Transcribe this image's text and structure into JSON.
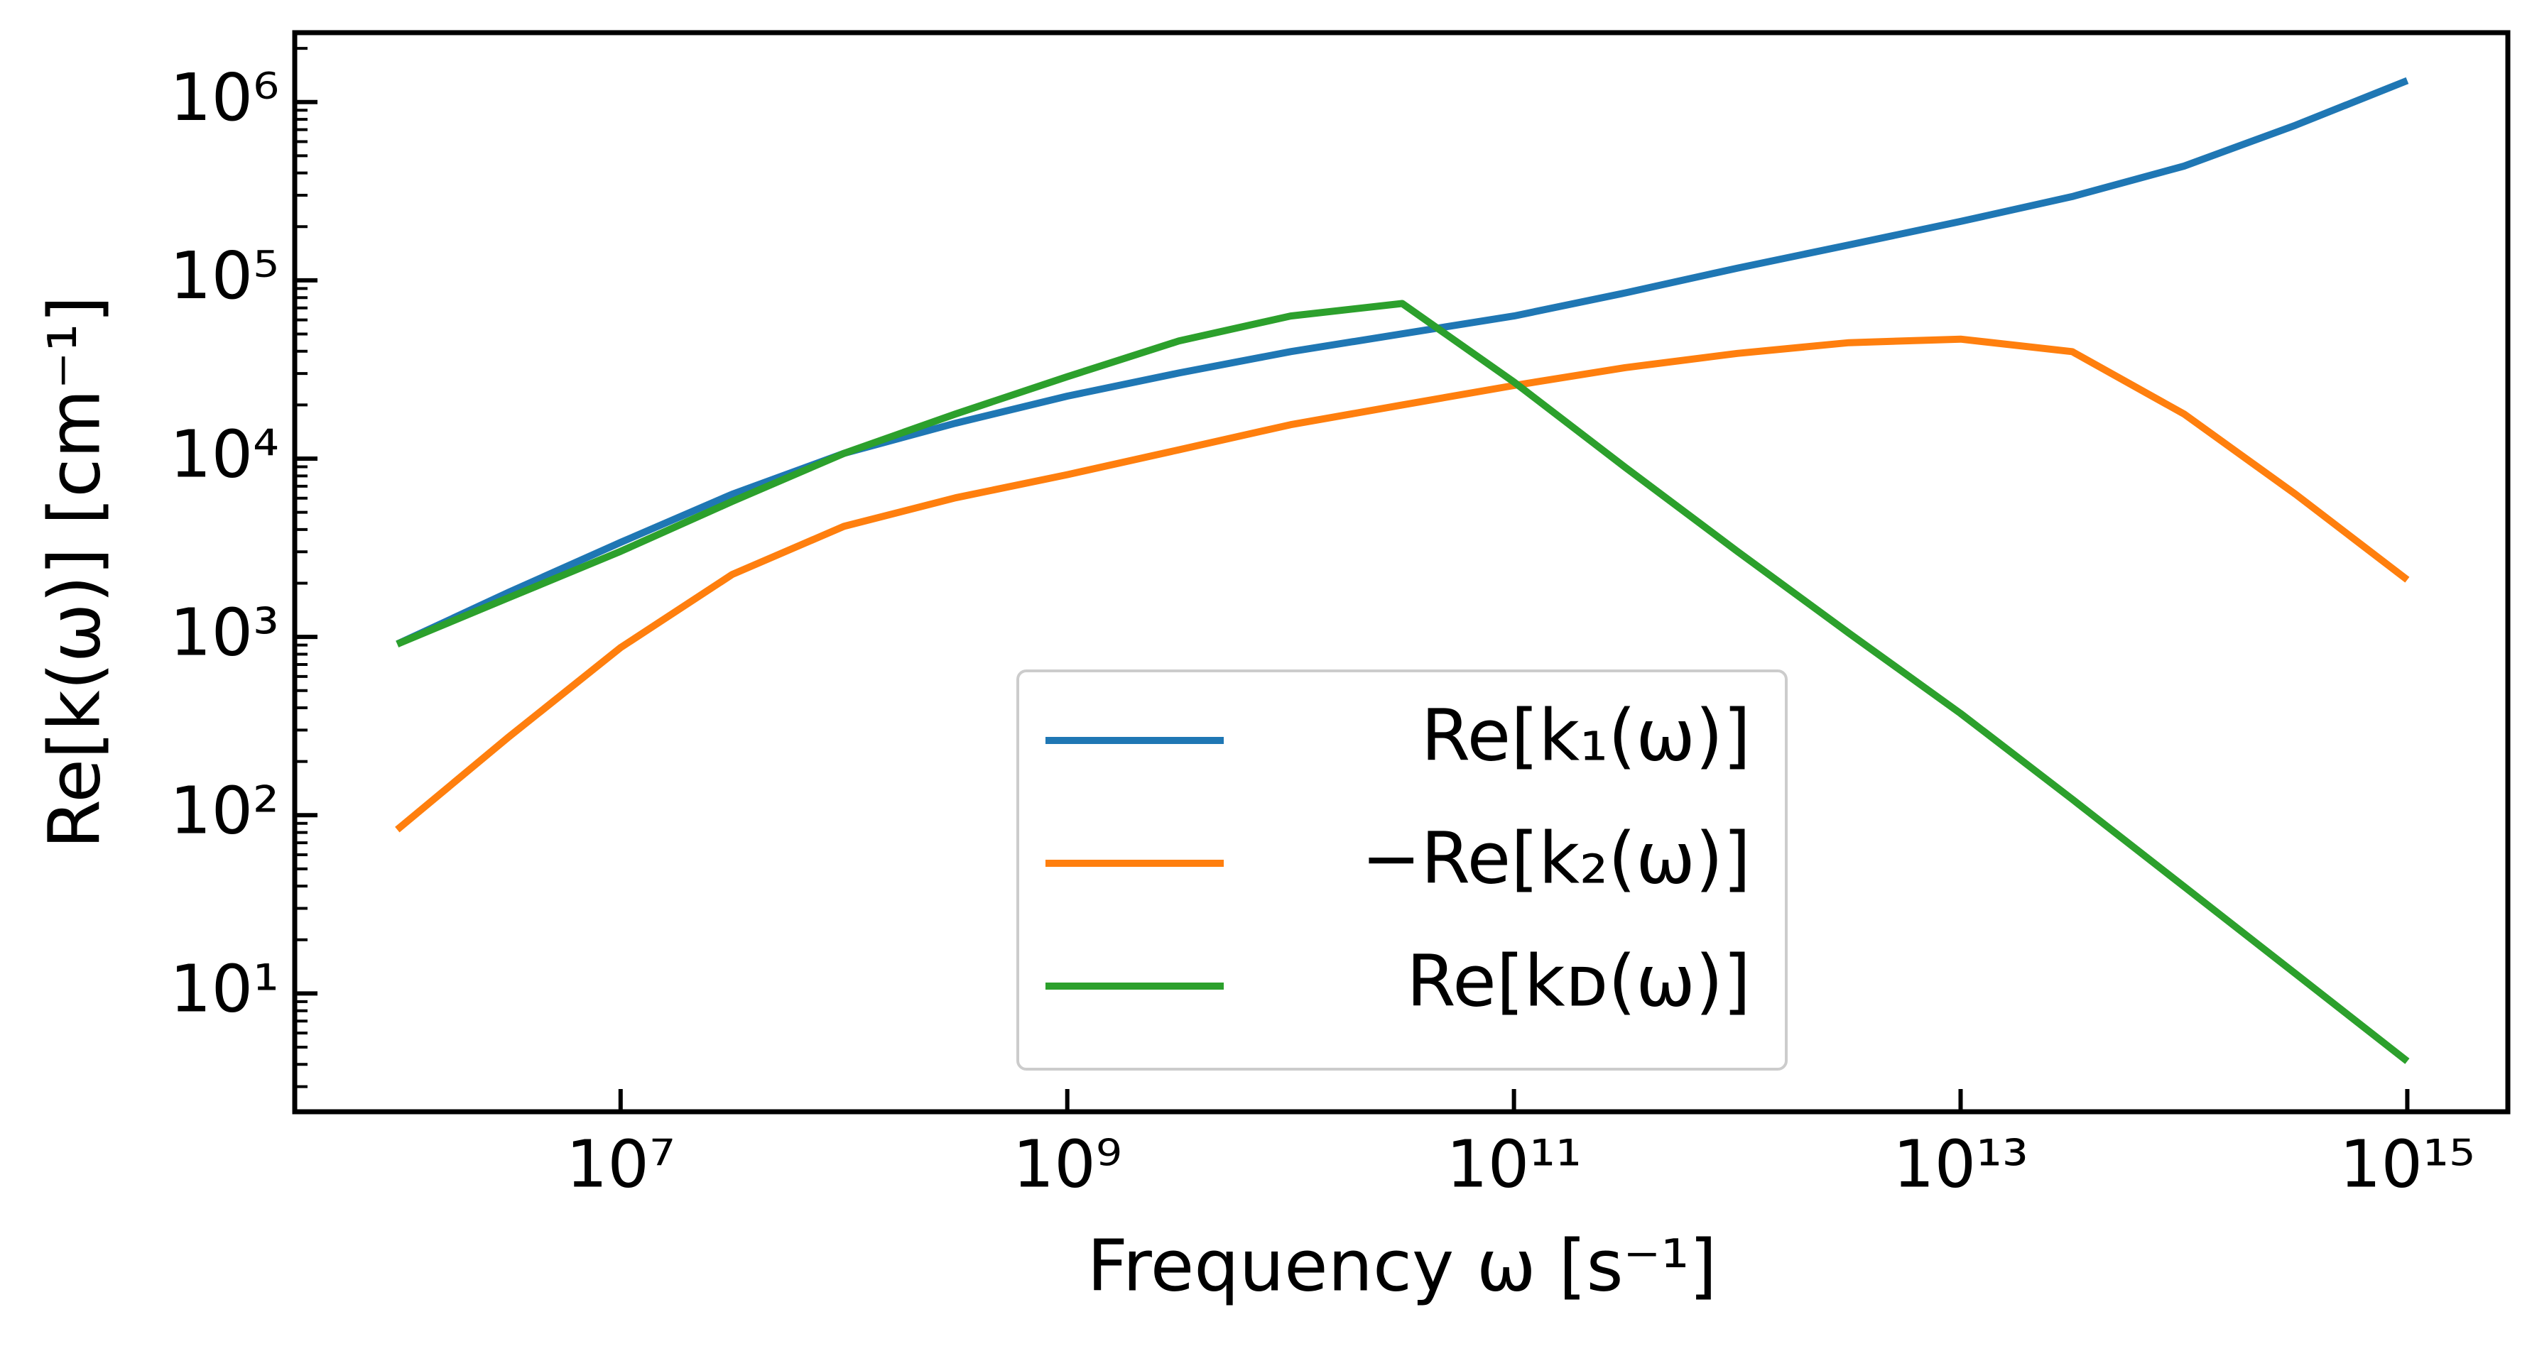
{
  "chart_data": {
    "type": "line",
    "x_label": "Frequency ω [s⁻¹]",
    "y_label": "Re[k(ω)]   [cm⁻¹]",
    "log_x": true,
    "log_y": true,
    "legend": "lower center",
    "x": [
      1000000.0,
      3160000.0,
      10000000.0,
      31600000.0,
      100000000.0,
      316000000.0,
      1000000000.0,
      3160000000.0,
      10000000000.0,
      31600000000.0,
      100000000000.0,
      316000000000.0,
      1000000000000.0,
      3160000000000.0,
      10000000000000.0,
      31600000000000.0,
      100000000000000.0,
      316000000000000.0,
      1000000000000000.0
    ],
    "series": [
      {
        "name": "Re[k₁(ω)]",
        "color": "#1f77b4",
        "values": [
          912,
          1780,
          3390,
          6310,
          10700,
          15800,
          22400,
          30200,
          39800,
          50100,
          63100,
          85100,
          117000,
          158000,
          214000,
          295000,
          437000,
          741000,
          1320000
        ]
      },
      {
        "name": "−Re[k₂(ω)]",
        "color": "#ff7f0e",
        "values": [
          83,
          275,
          871,
          2240,
          4170,
          6030,
          8130,
          11200,
          15500,
          20000,
          25700,
          32400,
          38900,
          44700,
          46800,
          39800,
          17800,
          6310,
          2090
        ]
      },
      {
        "name": "Re[kᴅ(ω)]",
        "color": "#2ca02c",
        "values": [
          912,
          1660,
          3020,
          5750,
          10700,
          17800,
          28800,
          45700,
          63100,
          74100,
          26900,
          8910,
          3020,
          1050,
          372,
          123,
          39.8,
          12.9,
          4.17
        ]
      }
    ],
    "xlim": [
      347500,
      2820000000000000.0
    ],
    "ylim": [
      2.17,
      2450000
    ],
    "xticks": [
      {
        "value": 10000000.0,
        "label": "10⁷"
      },
      {
        "value": 1000000000.0,
        "label": "10⁹"
      },
      {
        "value": 100000000000.0,
        "label": "10¹¹"
      },
      {
        "value": 10000000000000.0,
        "label": "10¹³"
      },
      {
        "value": 1000000000000000.0,
        "label": "10¹⁵"
      }
    ],
    "yticks": [
      {
        "value": 10,
        "label": "10¹"
      },
      {
        "value": 100,
        "label": "10²"
      },
      {
        "value": 1000,
        "label": "10³"
      },
      {
        "value": 10000,
        "label": "10⁴"
      },
      {
        "value": 100000,
        "label": "10⁵"
      },
      {
        "value": 1000000,
        "label": "10⁶"
      }
    ]
  }
}
